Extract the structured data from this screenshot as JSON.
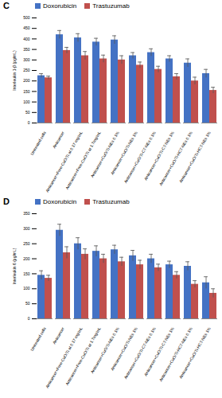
{
  "chart_data": [
    {
      "type": "bar",
      "title": "C",
      "ylabel": "Interleukin 1-β (pg/mL)",
      "categories": [
        "Untreated cells",
        "Anticancer",
        "Anticancer+Free-CuO/Ti at 0.17 mg/mL",
        "Anticancer+Free-CuO/Ti at 1.7mg/mL",
        "Anticancer+CuO/Ti-NEs 0.1%",
        "Anticancer+CuO/Ti-NEs 1%",
        "Anticancer+CuO/Ti-CT-NEs 0.1%",
        "Anticancer+CuO/Ti-CT-NEs 1%",
        "Anticancer+CuO/Ti-HCT-NEs 0.1%",
        "Anticancer+CuO/Ti-HCT-NEs 1%"
      ],
      "series": [
        {
          "name": "Doxorubicin",
          "color": "#4472c4",
          "values": [
            225,
            420,
            405,
            385,
            395,
            320,
            335,
            305,
            285,
            235
          ],
          "errors": [
            10,
            20,
            20,
            18,
            20,
            15,
            18,
            15,
            20,
            20
          ]
        },
        {
          "name": "Trastuzumab",
          "color": "#c0504d",
          "values": [
            215,
            345,
            320,
            305,
            300,
            275,
            255,
            220,
            200,
            155
          ],
          "errors": [
            8,
            15,
            20,
            18,
            20,
            15,
            15,
            15,
            18,
            15
          ]
        }
      ],
      "ylim": [
        0,
        500
      ],
      "yticks": [
        0,
        50,
        100,
        150,
        200,
        250,
        300,
        350,
        400,
        450,
        500
      ],
      "grid": false,
      "legend": "top"
    },
    {
      "type": "bar",
      "title": "D",
      "ylabel": "Interleukin 6 (pg/mL)",
      "categories": [
        "Untreated cells",
        "Anticancer",
        "Anticancer+Free-CuO/Ti at 0.17 mg/mL",
        "Anticancer+Free-CuO/Ti at 1.7mg/mL",
        "Anticancer+CuO/Ti-NEs 0.1%",
        "Anticancer+CuO/Ti-NEs 1%",
        "Anticancer+CuO/Ti-CT-NEs 0.1%",
        "Anticancer+CuO/Ti-CT-NEs 1%",
        "Anticancer+CuO/Ti-HCT-NEs 0.1%",
        "Anticancer+CuO/Ti-HCT-NEs 1%"
      ],
      "series": [
        {
          "name": "Doxorubicin",
          "color": "#4472c4",
          "values": [
            145,
            295,
            250,
            225,
            230,
            210,
            200,
            180,
            175,
            120
          ],
          "errors": [
            15,
            20,
            20,
            18,
            15,
            18,
            15,
            12,
            15,
            20
          ]
        },
        {
          "name": "Trastuzumab",
          "color": "#c0504d",
          "values": [
            135,
            220,
            215,
            200,
            190,
            180,
            170,
            145,
            115,
            85
          ],
          "errors": [
            10,
            20,
            18,
            15,
            15,
            15,
            12,
            12,
            12,
            15
          ]
        }
      ],
      "ylim": [
        0,
        350
      ],
      "yticks": [
        0,
        50,
        100,
        150,
        200,
        250,
        300,
        350
      ],
      "grid": false,
      "legend": "top"
    }
  ]
}
